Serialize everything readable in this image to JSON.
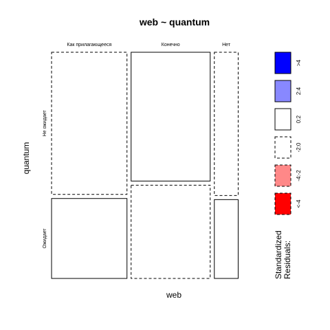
{
  "chart_data": {
    "type": "mosaic",
    "title": "web ~ quantum",
    "xlabel": "web",
    "ylabel": "quantum",
    "x_categories": [
      "Как прилагающееся",
      "Конечно",
      "Нет"
    ],
    "y_categories": [
      "Не ожидает",
      "Ожидает"
    ],
    "column_proportions": [
      0.389,
      0.408,
      0.123
    ],
    "cells": [
      {
        "web": "Как прилагающееся",
        "quantum": "Не ожидает",
        "share": 0.64,
        "residual_class": "-2:0"
      },
      {
        "web": "Как прилагающееся",
        "quantum": "Ожидает",
        "share": 0.36,
        "residual_class": "0:2"
      },
      {
        "web": "Конечно",
        "quantum": "Не ожидает",
        "share": 0.58,
        "residual_class": "0:2"
      },
      {
        "web": "Конечно",
        "quantum": "Ожидает",
        "share": 0.42,
        "residual_class": "-2:0"
      },
      {
        "web": "Нет",
        "quantum": "Не ожидает",
        "share": 0.645,
        "residual_class": "-2:0"
      },
      {
        "web": "Нет",
        "quantum": "Ожидает",
        "share": 0.355,
        "residual_class": "0:2"
      }
    ],
    "legend": {
      "title_line1": "Standardized",
      "title_line2": "Residuals:",
      "items": [
        {
          "label": ">4",
          "fill": "#0000ff",
          "dashed": false
        },
        {
          "label": "2:4",
          "fill": "#8888ff",
          "dashed": false
        },
        {
          "label": "0:2",
          "fill": "#ffffff",
          "dashed": false
        },
        {
          "label": "-2:0",
          "fill": "#ffffff",
          "dashed": true
        },
        {
          "label": "-4:-2",
          "fill": "#ff8888",
          "dashed": true
        },
        {
          "label": "<-4",
          "fill": "#ff0000",
          "dashed": true
        }
      ]
    }
  }
}
